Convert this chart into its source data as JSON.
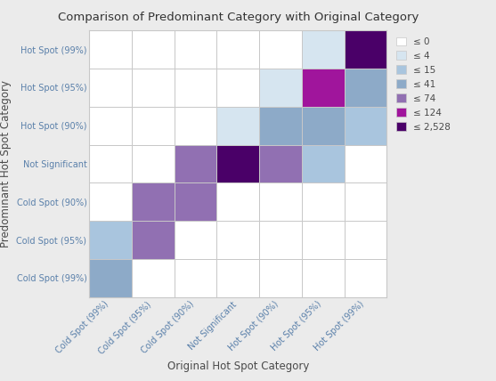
{
  "title": "Comparison of Predominant Category with Original Category",
  "xlabel": "Original Hot Spot Category",
  "ylabel": "Predominant Hot Spot Category",
  "categories": [
    "Cold Spot (99%)",
    "Cold Spot (95%)",
    "Cold Spot (90%)",
    "Not Significant",
    "Hot Spot (90%)",
    "Hot Spot (95%)",
    "Hot Spot (99%)"
  ],
  "matrix": [
    [
      41,
      0,
      0,
      0,
      0,
      0,
      0
    ],
    [
      15,
      74,
      0,
      0,
      0,
      0,
      0
    ],
    [
      0,
      74,
      74,
      0,
      0,
      0,
      0
    ],
    [
      0,
      0,
      74,
      2528,
      74,
      15,
      0
    ],
    [
      0,
      0,
      0,
      4,
      41,
      41,
      15
    ],
    [
      0,
      0,
      0,
      0,
      4,
      124,
      41
    ],
    [
      0,
      0,
      0,
      0,
      0,
      4,
      2528
    ]
  ],
  "legend_labels": [
    "≤ 0",
    "≤ 4",
    "≤ 15",
    "≤ 41",
    "≤ 74",
    "≤ 124",
    "≤ 2,528"
  ],
  "legend_colors": [
    "#ffffff",
    "#d6e5f0",
    "#a9c5de",
    "#8daac8",
    "#9170b2",
    "#a0159c",
    "#4a0068"
  ],
  "background_color": "#ebebeb",
  "grid_color": "#c8c8c8",
  "title_color": "#333333",
  "label_color": "#4a4a4a",
  "tick_color": "#5a80aa"
}
